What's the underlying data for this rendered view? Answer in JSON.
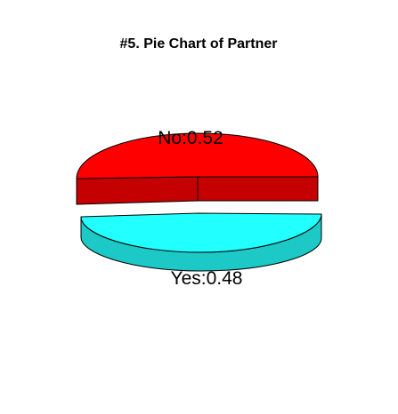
{
  "chart_data": {
    "type": "pie",
    "style": "3d-exploded",
    "title": "#5. Pie Chart of Partner",
    "slices": [
      {
        "label": "No",
        "value": 0.52,
        "display": "No:0.52",
        "top_color": "#ff0000",
        "side_color": "#c40000"
      },
      {
        "label": "Yes",
        "value": 0.48,
        "display": "Yes:0.48",
        "top_color": "#22ffff",
        "side_color": "#1cc9c6"
      }
    ]
  }
}
